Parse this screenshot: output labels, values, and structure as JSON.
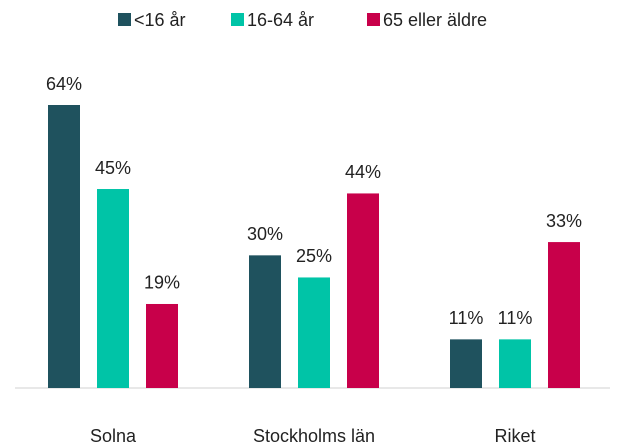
{
  "chart_data": {
    "type": "bar",
    "categories": [
      "Solna",
      "Stockholms län",
      "Riket"
    ],
    "series": [
      {
        "name": "<16 år",
        "color": "#1f525e",
        "values": [
          64,
          30,
          11
        ],
        "value_labels": [
          "64%",
          "30%",
          "11%"
        ]
      },
      {
        "name": "16-64 år",
        "color": "#00c4a7",
        "values": [
          45,
          25,
          11
        ],
        "value_labels": [
          "45%",
          "25%",
          "11%"
        ]
      },
      {
        "name": "65 eller äldre",
        "color": "#c8004a",
        "values": [
          19,
          44,
          33
        ],
        "value_labels": [
          "19%",
          "44%",
          "33%"
        ]
      }
    ],
    "legend": "top"
  }
}
